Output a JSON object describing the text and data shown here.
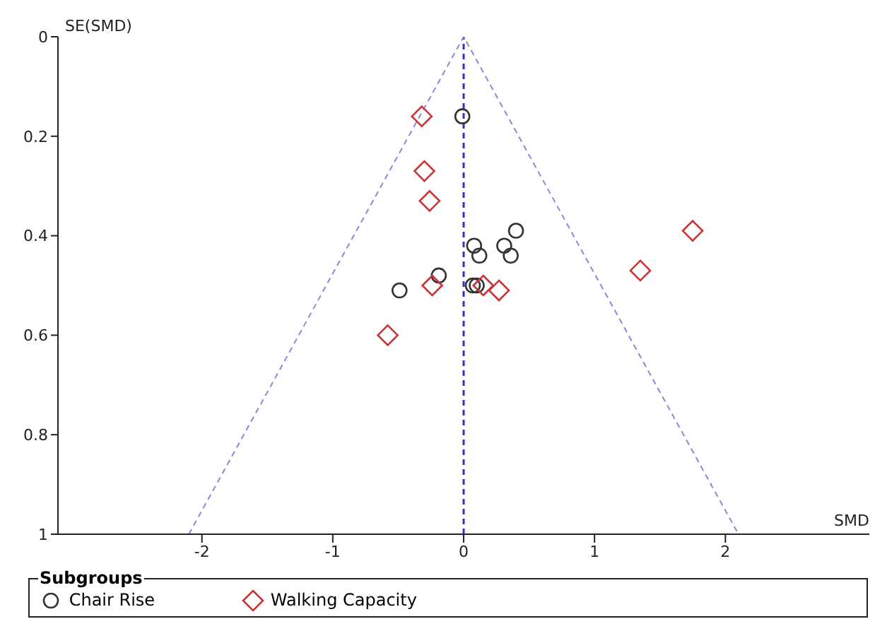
{
  "chart_data": {
    "type": "scatter",
    "xlabel": "SMD",
    "ylabel": "SE(SMD)",
    "legend_title": "Subgroups",
    "legend": "bottom",
    "xlim": [
      -3.1,
      3.1
    ],
    "xticks": [
      -2,
      -1,
      0,
      1,
      2
    ],
    "ylim": [
      1,
      0
    ],
    "yticks": [
      0,
      0.2,
      0.4,
      0.6,
      0.8,
      1
    ],
    "grid": false,
    "ref_lines": [
      {
        "axis": "x",
        "value": 0,
        "color": "#3333cc",
        "line_style": "dashed"
      }
    ],
    "series": [
      {
        "type": "line",
        "color": "#8888dd",
        "line_style": "dashed",
        "marker": "none",
        "x": [
          -2.1,
          0,
          2.1
        ],
        "values": [
          1,
          0,
          1
        ]
      },
      {
        "name": "Chair Rise",
        "color": "#333333",
        "marker": "circle",
        "x": [
          -0.01,
          0.4,
          0.08,
          0.12,
          0.31,
          0.36,
          -0.19,
          -0.49,
          0.07,
          0.1
        ],
        "values": [
          0.16,
          0.39,
          0.42,
          0.44,
          0.42,
          0.44,
          0.48,
          0.51,
          0.5,
          0.5
        ]
      },
      {
        "name": "Walking Capacity",
        "color": "#cc3333",
        "marker": "diamond",
        "x": [
          -0.32,
          -0.3,
          -0.26,
          -0.24,
          0.15,
          0.27,
          -0.58,
          1.35,
          1.75
        ],
        "values": [
          0.16,
          0.27,
          0.33,
          0.5,
          0.5,
          0.51,
          0.6,
          0.47,
          0.39
        ]
      }
    ]
  }
}
